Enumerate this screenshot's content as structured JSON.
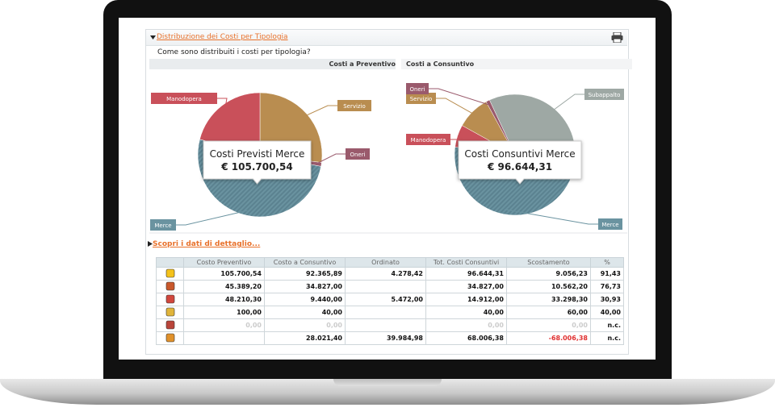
{
  "header": {
    "title": "Distribuzione dei Costi per Tipologia",
    "question": "Come sono distribuiti i costi per tipologia?"
  },
  "pies": [
    {
      "tab": "Costi a Preventivo",
      "callout_title": "Costi Previsti Merce",
      "callout_value": "€ 105.700,54",
      "slices": [
        {
          "name": "Servizio",
          "color": "#b98d50",
          "value": 27
        },
        {
          "name": "Oneri",
          "color": "#9a5a6c",
          "value": 1
        },
        {
          "name": "Merce",
          "color": "#6a93a0",
          "value": 51
        },
        {
          "name": "Manodopera",
          "color": "#c9505a",
          "value": 21
        }
      ]
    },
    {
      "tab": "Costi a Consuntivo",
      "callout_title": "Costi Consuntivi Merce",
      "callout_value": "€ 96.644,31",
      "slices": [
        {
          "name": "Subappalto",
          "color": "#9ea8a4",
          "value": 36
        },
        {
          "name": "Merce",
          "color": "#6a93a0",
          "value": 48
        },
        {
          "name": "Manodopera",
          "color": "#c9505a",
          "value": 6
        },
        {
          "name": "Servizio",
          "color": "#b98d50",
          "value": 9
        },
        {
          "name": "Oneri",
          "color": "#9a5a6c",
          "value": 1
        }
      ]
    }
  ],
  "detail_link": "Scopri i dati di dettaglio...",
  "table": {
    "columns": [
      "Costo Preventivo",
      "Costo a Consuntivo",
      "Ordinato",
      "Tot. Costi Consuntivi",
      "Scostamento",
      "%"
    ],
    "rows": [
      [
        "105.700,54",
        "92.365,89",
        "4.278,42",
        "96.644,31",
        "9.056,23",
        "91,43"
      ],
      [
        "45.389,20",
        "34.827,00",
        null,
        "34.827,00",
        "10.562,20",
        "76,73"
      ],
      [
        "48.210,30",
        "9.440,00",
        "5.472,00",
        "14.912,00",
        "33.298,30",
        "30,93"
      ],
      [
        "100,00",
        "40,00",
        null,
        "40,00",
        "60,00",
        "40,00"
      ],
      [
        "0,00",
        "0,00",
        null,
        "0,00",
        "0,00",
        "n.c."
      ],
      [
        null,
        "28.021,40",
        "39.984,98",
        "68.006,38",
        "-68.006,38",
        "n.c."
      ]
    ]
  }
}
